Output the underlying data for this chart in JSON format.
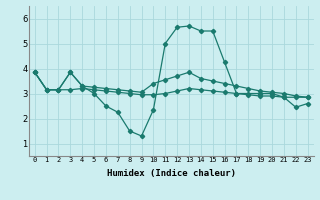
{
  "xlabel": "Humidex (Indice chaleur)",
  "background_color": "#cceef0",
  "grid_color": "#aad8dc",
  "line_color": "#1a7a6e",
  "x_ticks": [
    0,
    1,
    2,
    3,
    4,
    5,
    6,
    7,
    8,
    9,
    10,
    11,
    12,
    13,
    14,
    15,
    16,
    17,
    18,
    19,
    20,
    21,
    22,
    23
  ],
  "ylim": [
    0.5,
    6.5
  ],
  "xlim": [
    -0.5,
    23.5
  ],
  "series1_x": [
    0,
    1,
    2,
    3,
    4,
    5,
    6,
    7,
    8,
    9,
    10,
    11,
    12,
    13,
    14,
    15,
    16,
    17,
    18,
    19,
    20,
    21,
    22,
    23
  ],
  "series1_y": [
    3.85,
    3.15,
    3.15,
    3.85,
    3.3,
    3.25,
    3.2,
    3.15,
    3.1,
    3.05,
    3.4,
    3.55,
    3.7,
    3.85,
    3.6,
    3.5,
    3.4,
    3.3,
    3.2,
    3.1,
    3.05,
    3.0,
    2.9,
    2.85
  ],
  "series2_x": [
    0,
    1,
    2,
    3,
    4,
    5,
    6,
    7,
    8,
    9,
    10,
    11,
    12,
    13,
    14,
    15,
    16,
    17,
    18,
    19,
    20,
    21,
    22,
    23
  ],
  "series2_y": [
    3.85,
    3.15,
    3.15,
    3.85,
    3.3,
    3.0,
    2.5,
    2.25,
    1.5,
    1.3,
    2.35,
    5.0,
    5.65,
    5.7,
    5.5,
    5.5,
    4.25,
    3.0,
    3.0,
    3.0,
    3.0,
    2.85,
    2.45,
    2.6
  ],
  "series3_x": [
    0,
    1,
    2,
    3,
    4,
    5,
    6,
    7,
    8,
    9,
    10,
    11,
    12,
    13,
    14,
    15,
    16,
    17,
    18,
    19,
    20,
    21,
    22,
    23
  ],
  "series3_y": [
    3.85,
    3.15,
    3.15,
    3.15,
    3.2,
    3.15,
    3.1,
    3.05,
    3.0,
    2.95,
    2.95,
    3.0,
    3.1,
    3.2,
    3.15,
    3.1,
    3.05,
    3.0,
    2.95,
    2.9,
    2.9,
    2.85,
    2.85,
    2.85
  ],
  "yticks": [
    1,
    2,
    3,
    4,
    5,
    6
  ]
}
